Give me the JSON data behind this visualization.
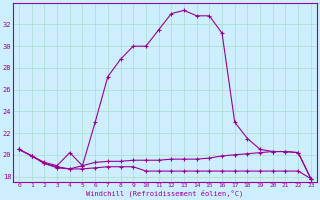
{
  "xlabel": "Windchill (Refroidissement éolien,°C)",
  "bg_color": "#cceeff",
  "line_color": "#990099",
  "grid_color": "#aaddcc",
  "xlim": [
    -0.5,
    23.5
  ],
  "ylim": [
    17.5,
    34.0
  ],
  "yticks": [
    18,
    20,
    22,
    24,
    26,
    28,
    30,
    32
  ],
  "xticks": [
    0,
    1,
    2,
    3,
    4,
    5,
    6,
    7,
    8,
    9,
    10,
    11,
    12,
    13,
    14,
    15,
    16,
    17,
    18,
    19,
    20,
    21,
    22,
    23
  ],
  "line1_x": [
    0,
    1,
    2,
    3,
    4,
    5,
    6,
    7,
    8,
    9,
    10,
    11,
    12,
    13,
    14,
    15,
    16,
    17,
    18,
    19,
    20,
    21,
    22,
    23
  ],
  "line1_y": [
    20.5,
    19.9,
    19.3,
    19.0,
    20.2,
    19.0,
    23.0,
    27.2,
    28.8,
    30.0,
    30.0,
    31.5,
    33.0,
    33.3,
    32.8,
    32.8,
    31.2,
    23.0,
    21.5,
    20.5,
    20.3,
    20.3,
    20.2,
    17.8
  ],
  "line2_x": [
    0,
    1,
    2,
    3,
    4,
    5,
    6,
    7,
    8,
    9,
    10,
    11,
    12,
    13,
    14,
    15,
    16,
    17,
    18,
    19,
    20,
    21,
    22,
    23
  ],
  "line2_y": [
    20.5,
    19.9,
    19.2,
    18.9,
    18.7,
    19.0,
    19.3,
    19.4,
    19.4,
    19.5,
    19.5,
    19.5,
    19.6,
    19.6,
    19.6,
    19.7,
    19.9,
    20.0,
    20.1,
    20.2,
    20.3,
    20.3,
    20.2,
    17.8
  ],
  "line3_x": [
    0,
    1,
    2,
    3,
    4,
    5,
    6,
    7,
    8,
    9,
    10,
    11,
    12,
    13,
    14,
    15,
    16,
    17,
    18,
    19,
    20,
    21,
    22,
    23
  ],
  "line3_y": [
    20.5,
    19.9,
    19.2,
    18.8,
    18.7,
    18.7,
    18.8,
    18.9,
    18.9,
    18.9,
    18.5,
    18.5,
    18.5,
    18.5,
    18.5,
    18.5,
    18.5,
    18.5,
    18.5,
    18.5,
    18.5,
    18.5,
    18.5,
    17.8
  ]
}
